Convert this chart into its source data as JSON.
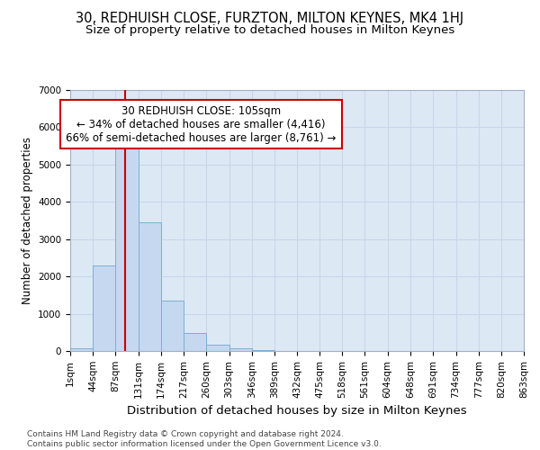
{
  "title": "30, REDHUISH CLOSE, FURZTON, MILTON KEYNES, MK4 1HJ",
  "subtitle": "Size of property relative to detached houses in Milton Keynes",
  "xlabel": "Distribution of detached houses by size in Milton Keynes",
  "ylabel": "Number of detached properties",
  "bin_edges": [
    1,
    44,
    87,
    131,
    174,
    217,
    260,
    303,
    346,
    389,
    432,
    475,
    518,
    561,
    604,
    648,
    691,
    734,
    777,
    820,
    863
  ],
  "bar_heights": [
    80,
    2300,
    5450,
    3450,
    1350,
    480,
    170,
    80,
    30,
    10,
    0,
    0,
    0,
    0,
    0,
    0,
    0,
    0,
    0,
    0
  ],
  "bar_color": "#c5d8f0",
  "bar_edge_color": "#7bafd4",
  "red_line_x": 105,
  "red_line_color": "#cc0000",
  "annotation_text": "30 REDHUISH CLOSE: 105sqm\n← 34% of detached houses are smaller (4,416)\n66% of semi-detached houses are larger (8,761) →",
  "annotation_box_facecolor": "#ffffff",
  "annotation_box_edgecolor": "#cc0000",
  "ylim": [
    0,
    7000
  ],
  "yticks": [
    0,
    1000,
    2000,
    3000,
    4000,
    5000,
    6000,
    7000
  ],
  "grid_color": "#c8d4e8",
  "background_color": "#dce8f4",
  "footer_text": "Contains HM Land Registry data © Crown copyright and database right 2024.\nContains public sector information licensed under the Open Government Licence v3.0.",
  "title_fontsize": 10.5,
  "subtitle_fontsize": 9.5,
  "xlabel_fontsize": 9.5,
  "ylabel_fontsize": 8.5,
  "tick_fontsize": 7.5,
  "annotation_fontsize": 8.5,
  "footer_fontsize": 6.5
}
